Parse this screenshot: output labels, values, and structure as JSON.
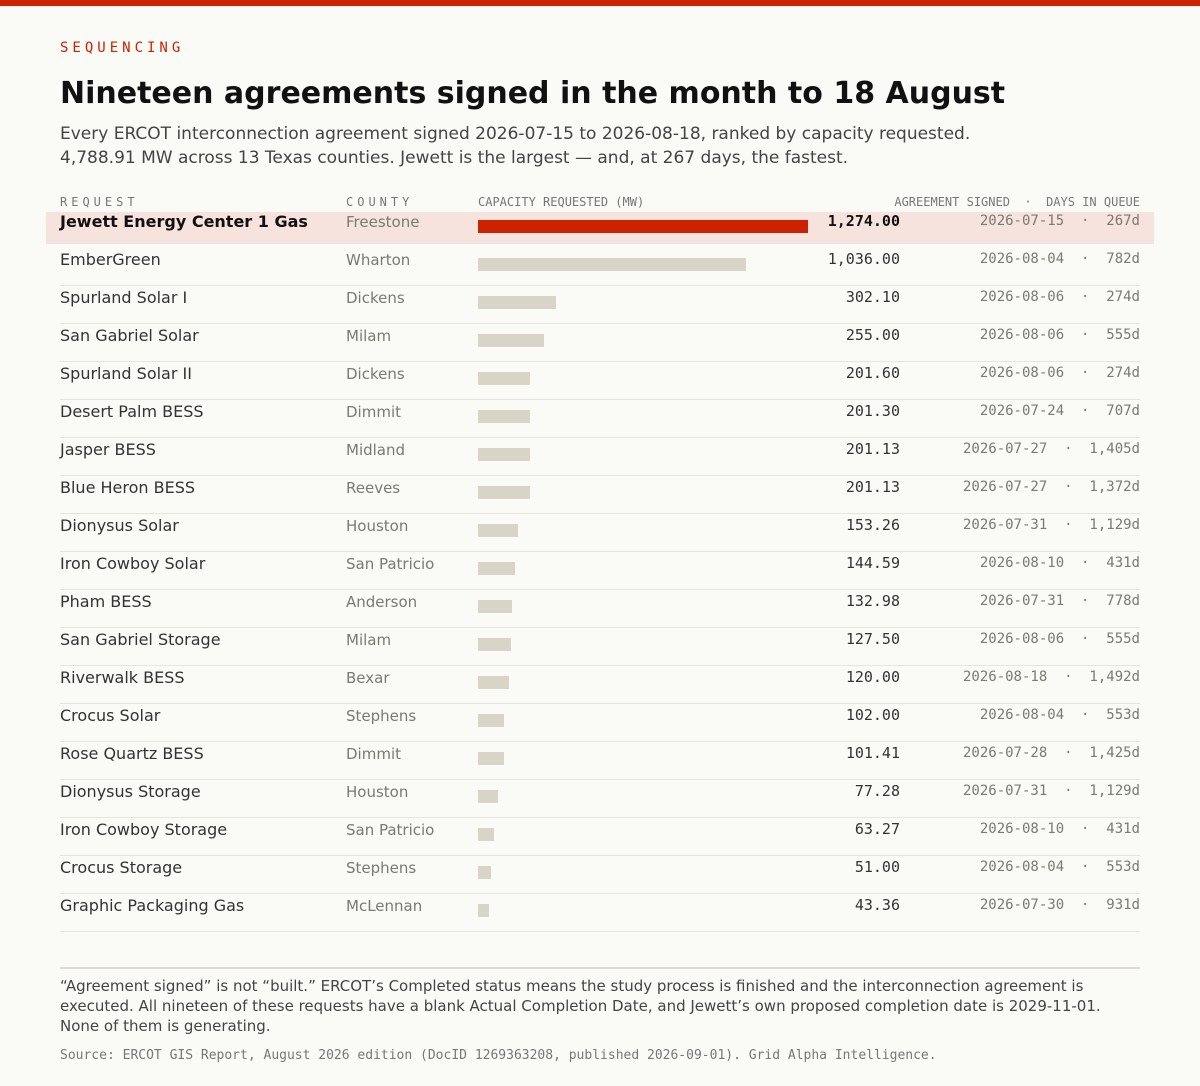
{
  "kicker": "SEQUENCING",
  "title": "Nineteen agreements signed in the month to 18 August",
  "subtitle_line1": "Every ERCOT interconnection agreement signed 2026-07-15 to 2026-08-18, ranked by capacity requested.",
  "subtitle_line2": "4,788.91 MW across 13 Texas counties. Jewett is the largest — and, at 267 days, the fastest.",
  "headers": {
    "request": "REQUEST",
    "county": "COUNTY",
    "capacity": "CAPACITY REQUESTED (MW)",
    "signed": "AGREEMENT SIGNED  ·  DAYS IN QUEUE"
  },
  "colors": {
    "accent": "#cc2200",
    "bar": "#d8d4c6",
    "highlight_row": "#f7e3dd"
  },
  "chart_data": {
    "type": "bar",
    "orientation": "horizontal",
    "xlim": [
      0,
      1274
    ],
    "rows": [
      {
        "name": "Jewett Energy Center 1 Gas",
        "county": "Freestone",
        "value": 1274.0,
        "value_label": "1,274.00",
        "signed": "2026-07-15",
        "days": "267d",
        "highlight": true
      },
      {
        "name": "EmberGreen",
        "county": "Wharton",
        "value": 1036.0,
        "value_label": "1,036.00",
        "signed": "2026-08-04",
        "days": "782d"
      },
      {
        "name": "Spurland Solar I",
        "county": "Dickens",
        "value": 302.1,
        "value_label": "302.10",
        "signed": "2026-08-06",
        "days": "274d"
      },
      {
        "name": "San Gabriel Solar",
        "county": "Milam",
        "value": 255.0,
        "value_label": "255.00",
        "signed": "2026-08-06",
        "days": "555d"
      },
      {
        "name": "Spurland Solar II",
        "county": "Dickens",
        "value": 201.6,
        "value_label": "201.60",
        "signed": "2026-08-06",
        "days": "274d"
      },
      {
        "name": "Desert Palm BESS",
        "county": "Dimmit",
        "value": 201.3,
        "value_label": "201.30",
        "signed": "2026-07-24",
        "days": "707d"
      },
      {
        "name": "Jasper BESS",
        "county": "Midland",
        "value": 201.13,
        "value_label": "201.13",
        "signed": "2026-07-27",
        "days": "1,405d"
      },
      {
        "name": "Blue Heron BESS",
        "county": "Reeves",
        "value": 201.13,
        "value_label": "201.13",
        "signed": "2026-07-27",
        "days": "1,372d"
      },
      {
        "name": "Dionysus Solar",
        "county": "Houston",
        "value": 153.26,
        "value_label": "153.26",
        "signed": "2026-07-31",
        "days": "1,129d"
      },
      {
        "name": "Iron Cowboy Solar",
        "county": "San Patricio",
        "value": 144.59,
        "value_label": "144.59",
        "signed": "2026-08-10",
        "days": "431d"
      },
      {
        "name": "Pham BESS",
        "county": "Anderson",
        "value": 132.98,
        "value_label": "132.98",
        "signed": "2026-07-31",
        "days": "778d"
      },
      {
        "name": "San Gabriel Storage",
        "county": "Milam",
        "value": 127.5,
        "value_label": "127.50",
        "signed": "2026-08-06",
        "days": "555d"
      },
      {
        "name": "Riverwalk BESS",
        "county": "Bexar",
        "value": 120.0,
        "value_label": "120.00",
        "signed": "2026-08-18",
        "days": "1,492d"
      },
      {
        "name": "Crocus Solar",
        "county": "Stephens",
        "value": 102.0,
        "value_label": "102.00",
        "signed": "2026-08-04",
        "days": "553d"
      },
      {
        "name": "Rose Quartz BESS",
        "county": "Dimmit",
        "value": 101.41,
        "value_label": "101.41",
        "signed": "2026-07-28",
        "days": "1,425d"
      },
      {
        "name": "Dionysus Storage",
        "county": "Houston",
        "value": 77.28,
        "value_label": "77.28",
        "signed": "2026-07-31",
        "days": "1,129d"
      },
      {
        "name": "Iron Cowboy Storage",
        "county": "San Patricio",
        "value": 63.27,
        "value_label": "63.27",
        "signed": "2026-08-10",
        "days": "431d"
      },
      {
        "name": "Crocus Storage",
        "county": "Stephens",
        "value": 51.0,
        "value_label": "51.00",
        "signed": "2026-08-04",
        "days": "553d"
      },
      {
        "name": "Graphic Packaging Gas",
        "county": "McLennan",
        "value": 43.36,
        "value_label": "43.36",
        "signed": "2026-07-30",
        "days": "931d"
      }
    ]
  },
  "note": "“Agreement signed” is not “built.” ERCOT’s Completed status means the study process is finished and the interconnection agreement is executed. All nineteen of these requests have a blank Actual Completion Date, and Jewett’s own proposed completion date is 2029-11-01. None of them is generating.",
  "source": "Source: ERCOT GIS Report, August 2026 edition (DocID 1269363208, published 2026-09-01). Grid Alpha Intelligence."
}
